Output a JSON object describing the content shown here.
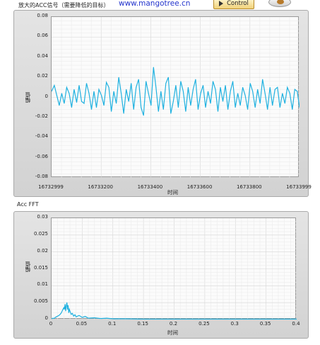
{
  "header": {
    "signal_title": "放大的ACC信号（需要降低的目标）",
    "url_text": "www.mangotree.cn",
    "control_label": "Control"
  },
  "chart_data": [
    {
      "type": "line",
      "ylabel": "幅值",
      "xlabel": "时间",
      "xlim": [
        16732999,
        16733999
      ],
      "ylim": [
        -0.08,
        0.08
      ],
      "x_ticks": [
        "16732999",
        "16733200",
        "16733400",
        "16733600",
        "16733800",
        "16733999"
      ],
      "y_ticks": [
        "0.08",
        "0.06",
        "0.04",
        "0.02",
        "0",
        "-0.02",
        "-0.04",
        "-0.06",
        "-0.08"
      ],
      "grid": true,
      "series_color": "#1fb1e0",
      "x": [
        16732999,
        16733010,
        16733020,
        16733030,
        16733040,
        16733050,
        16733060,
        16733070,
        16733080,
        16733090,
        16733100,
        16733110,
        16733120,
        16733130,
        16733140,
        16733150,
        16733160,
        16733170,
        16733180,
        16733190,
        16733200,
        16733210,
        16733220,
        16733230,
        16733240,
        16733250,
        16733260,
        16733270,
        16733280,
        16733290,
        16733300,
        16733310,
        16733320,
        16733330,
        16733340,
        16733350,
        16733360,
        16733370,
        16733380,
        16733390,
        16733400,
        16733410,
        16733420,
        16733430,
        16733440,
        16733450,
        16733460,
        16733470,
        16733480,
        16733490,
        16733500,
        16733510,
        16733520,
        16733530,
        16733540,
        16733550,
        16733560,
        16733570,
        16733580,
        16733590,
        16733600,
        16733610,
        16733620,
        16733630,
        16733640,
        16733650,
        16733660,
        16733670,
        16733680,
        16733690,
        16733700,
        16733710,
        16733720,
        16733730,
        16733740,
        16733750,
        16733760,
        16733770,
        16733780,
        16733790,
        16733800,
        16733810,
        16733820,
        16733830,
        16733840,
        16733850,
        16733860,
        16733870,
        16733880,
        16733890,
        16733900,
        16733910,
        16733920,
        16733930,
        16733940,
        16733950,
        16733960,
        16733970,
        16733980,
        16733990,
        16733999
      ],
      "y": [
        0.006,
        0.012,
        0.002,
        -0.008,
        0.004,
        -0.006,
        0.01,
        0.004,
        -0.01,
        0.008,
        -0.005,
        0.012,
        -0.004,
        -0.006,
        0.014,
        0.004,
        -0.012,
        0.006,
        -0.01,
        0.008,
        0.002,
        -0.008,
        0.015,
        0.01,
        -0.014,
        0.006,
        -0.006,
        0.02,
        0.004,
        -0.016,
        0.008,
        -0.004,
        0.014,
        -0.012,
        0.01,
        0.018,
        -0.01,
        -0.018,
        0.016,
        0.004,
        -0.008,
        0.03,
        0.01,
        -0.014,
        0.006,
        -0.012,
        0.014,
        0.02,
        -0.016,
        -0.004,
        0.012,
        -0.01,
        0.016,
        0.006,
        -0.014,
        0.01,
        -0.008,
        0.008,
        0.018,
        -0.012,
        0.004,
        0.012,
        -0.01,
        0.006,
        -0.006,
        0.016,
        0.008,
        -0.014,
        0.01,
        -0.004,
        0.012,
        -0.012,
        0.006,
        0.016,
        -0.01,
        0.004,
        -0.008,
        0.01,
        0.002,
        -0.012,
        0.014,
        0.006,
        -0.01,
        0.008,
        -0.006,
        0.018,
        0.004,
        -0.012,
        0.01,
        -0.008,
        0.008,
        0.01,
        -0.01,
        0.004,
        -0.006,
        0.01,
        0.004,
        -0.012,
        0.008,
        0.006,
        -0.01
      ]
    },
    {
      "type": "line",
      "title": "Acc FFT",
      "ylabel": "幅值",
      "xlabel": "时间",
      "xlim": [
        0,
        0.4
      ],
      "ylim": [
        0,
        0.03
      ],
      "x_ticks": [
        "0",
        "0.05",
        "0.1",
        "0.15",
        "0.2",
        "0.25",
        "0.3",
        "0.35",
        "0.4"
      ],
      "y_ticks": [
        "0.03",
        "0.025",
        "0.02",
        "0.015",
        "0.01",
        "0.005",
        "0"
      ],
      "grid": true,
      "series_color": "#1fb1e0",
      "x": [
        0,
        0.002,
        0.004,
        0.006,
        0.008,
        0.01,
        0.012,
        0.014,
        0.016,
        0.018,
        0.02,
        0.021,
        0.022,
        0.023,
        0.024,
        0.025,
        0.026,
        0.027,
        0.028,
        0.029,
        0.03,
        0.032,
        0.034,
        0.036,
        0.038,
        0.04,
        0.045,
        0.05,
        0.055,
        0.06,
        0.07,
        0.08,
        0.09,
        0.1,
        0.12,
        0.15,
        0.2,
        0.25,
        0.3,
        0.35,
        0.4
      ],
      "y": [
        0.0002,
        0.0004,
        0.0003,
        0.0006,
        0.0008,
        0.001,
        0.0012,
        0.0015,
        0.002,
        0.0028,
        0.0035,
        0.003,
        0.0045,
        0.0025,
        0.004,
        0.005,
        0.003,
        0.0042,
        0.002,
        0.003,
        0.0025,
        0.0015,
        0.0018,
        0.001,
        0.0014,
        0.0008,
        0.0012,
        0.0006,
        0.0009,
        0.0004,
        0.0005,
        0.0003,
        0.0004,
        0.0002,
        0.0002,
        0.0001,
        0.0001,
        0.0001,
        0.0001,
        0.0001,
        0.0001
      ]
    }
  ]
}
